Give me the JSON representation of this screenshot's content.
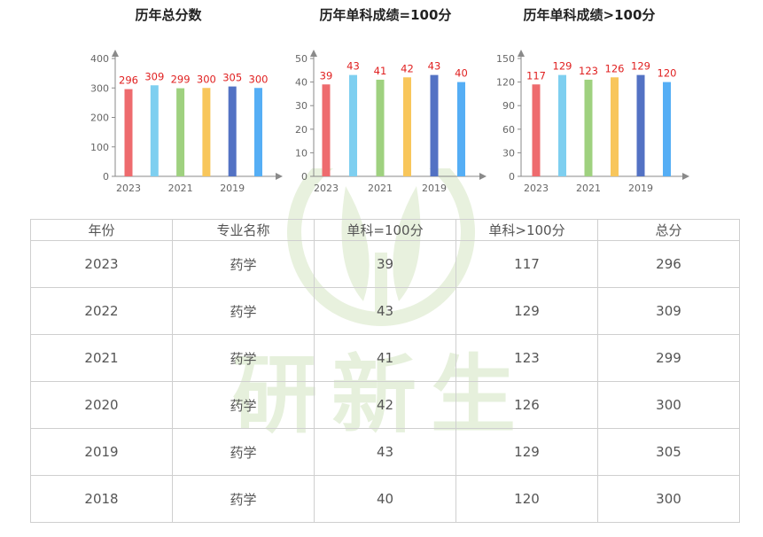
{
  "chart_data": [
    {
      "type": "bar",
      "title": "历年总分数",
      "categories": [
        "2023",
        "2022",
        "2021",
        "2020",
        "2019",
        "2018"
      ],
      "tick_labels": [
        "2023",
        "2021",
        "2019"
      ],
      "values": [
        296,
        309,
        299,
        300,
        305,
        300
      ],
      "ylim": [
        0,
        400
      ],
      "yticks": [
        0,
        100,
        200,
        300,
        400
      ],
      "xlabel": "",
      "ylabel": "",
      "grid": false
    },
    {
      "type": "bar",
      "title": "历年单科成绩=100分",
      "categories": [
        "2023",
        "2022",
        "2021",
        "2020",
        "2019",
        "2018"
      ],
      "tick_labels": [
        "2023",
        "2021",
        "2019"
      ],
      "values": [
        39,
        43,
        41,
        42,
        43,
        40
      ],
      "ylim": [
        0,
        50
      ],
      "yticks": [
        0,
        10,
        20,
        30,
        40,
        50
      ],
      "xlabel": "",
      "ylabel": "",
      "grid": false
    },
    {
      "type": "bar",
      "title": "历年单科成绩>100分",
      "categories": [
        "2023",
        "2022",
        "2021",
        "2020",
        "2019",
        "2018"
      ],
      "tick_labels": [
        "2023",
        "2021",
        "2019"
      ],
      "values": [
        117,
        129,
        123,
        126,
        129,
        120
      ],
      "ylim": [
        0,
        150
      ],
      "yticks": [
        0,
        30,
        60,
        90,
        120,
        150
      ],
      "xlabel": "",
      "ylabel": "",
      "grid": false
    }
  ],
  "bar_colors": [
    "#ee6b6e",
    "#7ecff0",
    "#9fd17f",
    "#f8c65b",
    "#5372c4",
    "#55aef5"
  ],
  "label_color": "#e02020",
  "axis_color": "#8a8a8a",
  "watermark": {
    "text": "研新生",
    "color": "#e6f0dc"
  },
  "table": {
    "headers": [
      "年份",
      "专业名称",
      "单科=100分",
      "单科>100分",
      "总分"
    ],
    "rows": [
      [
        "2023",
        "药学",
        "39",
        "117",
        "296"
      ],
      [
        "2022",
        "药学",
        "43",
        "129",
        "309"
      ],
      [
        "2021",
        "药学",
        "41",
        "123",
        "299"
      ],
      [
        "2020",
        "药学",
        "42",
        "126",
        "300"
      ],
      [
        "2019",
        "药学",
        "43",
        "129",
        "305"
      ],
      [
        "2018",
        "药学",
        "40",
        "120",
        "300"
      ]
    ]
  }
}
